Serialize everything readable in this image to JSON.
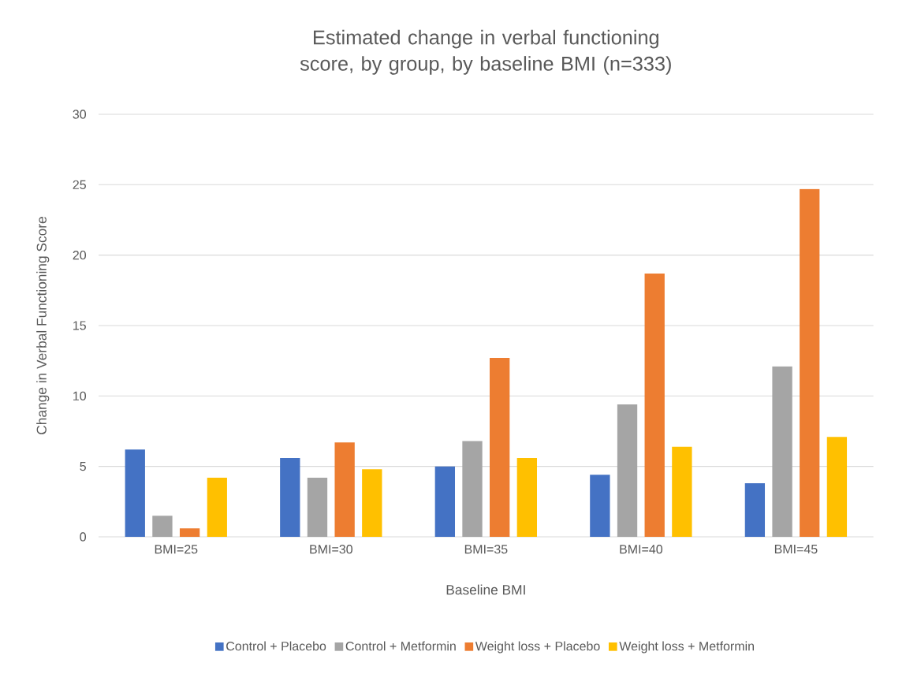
{
  "chart_data": {
    "type": "bar",
    "title": "Estimated change in verbal functioning score, by group, by baseline BMI (n=333)",
    "xlabel": "Baseline BMI",
    "ylabel": "Change in Verbal Functioning Score",
    "categories": [
      "BMI=25",
      "BMI=30",
      "BMI=35",
      "BMI=40",
      "BMI=45"
    ],
    "series": [
      {
        "name": "Control + Placebo",
        "color": "#4472c4",
        "values": [
          6.2,
          5.6,
          5.0,
          4.4,
          3.8
        ]
      },
      {
        "name": "Control + Metformin",
        "color": "#a5a5a5",
        "values": [
          1.5,
          4.2,
          6.8,
          9.4,
          12.1
        ]
      },
      {
        "name": "Weight loss + Placebo",
        "color": "#ed7d31",
        "values": [
          0.6,
          6.7,
          12.7,
          18.7,
          24.7
        ]
      },
      {
        "name": "Weight loss + Metformin",
        "color": "#ffc000",
        "values": [
          4.2,
          4.8,
          5.6,
          6.4,
          7.1
        ]
      }
    ],
    "ylim": [
      0,
      30
    ],
    "yticks": [
      0,
      5,
      10,
      15,
      20,
      25,
      30
    ],
    "grid": "y",
    "legend": "bottom"
  }
}
